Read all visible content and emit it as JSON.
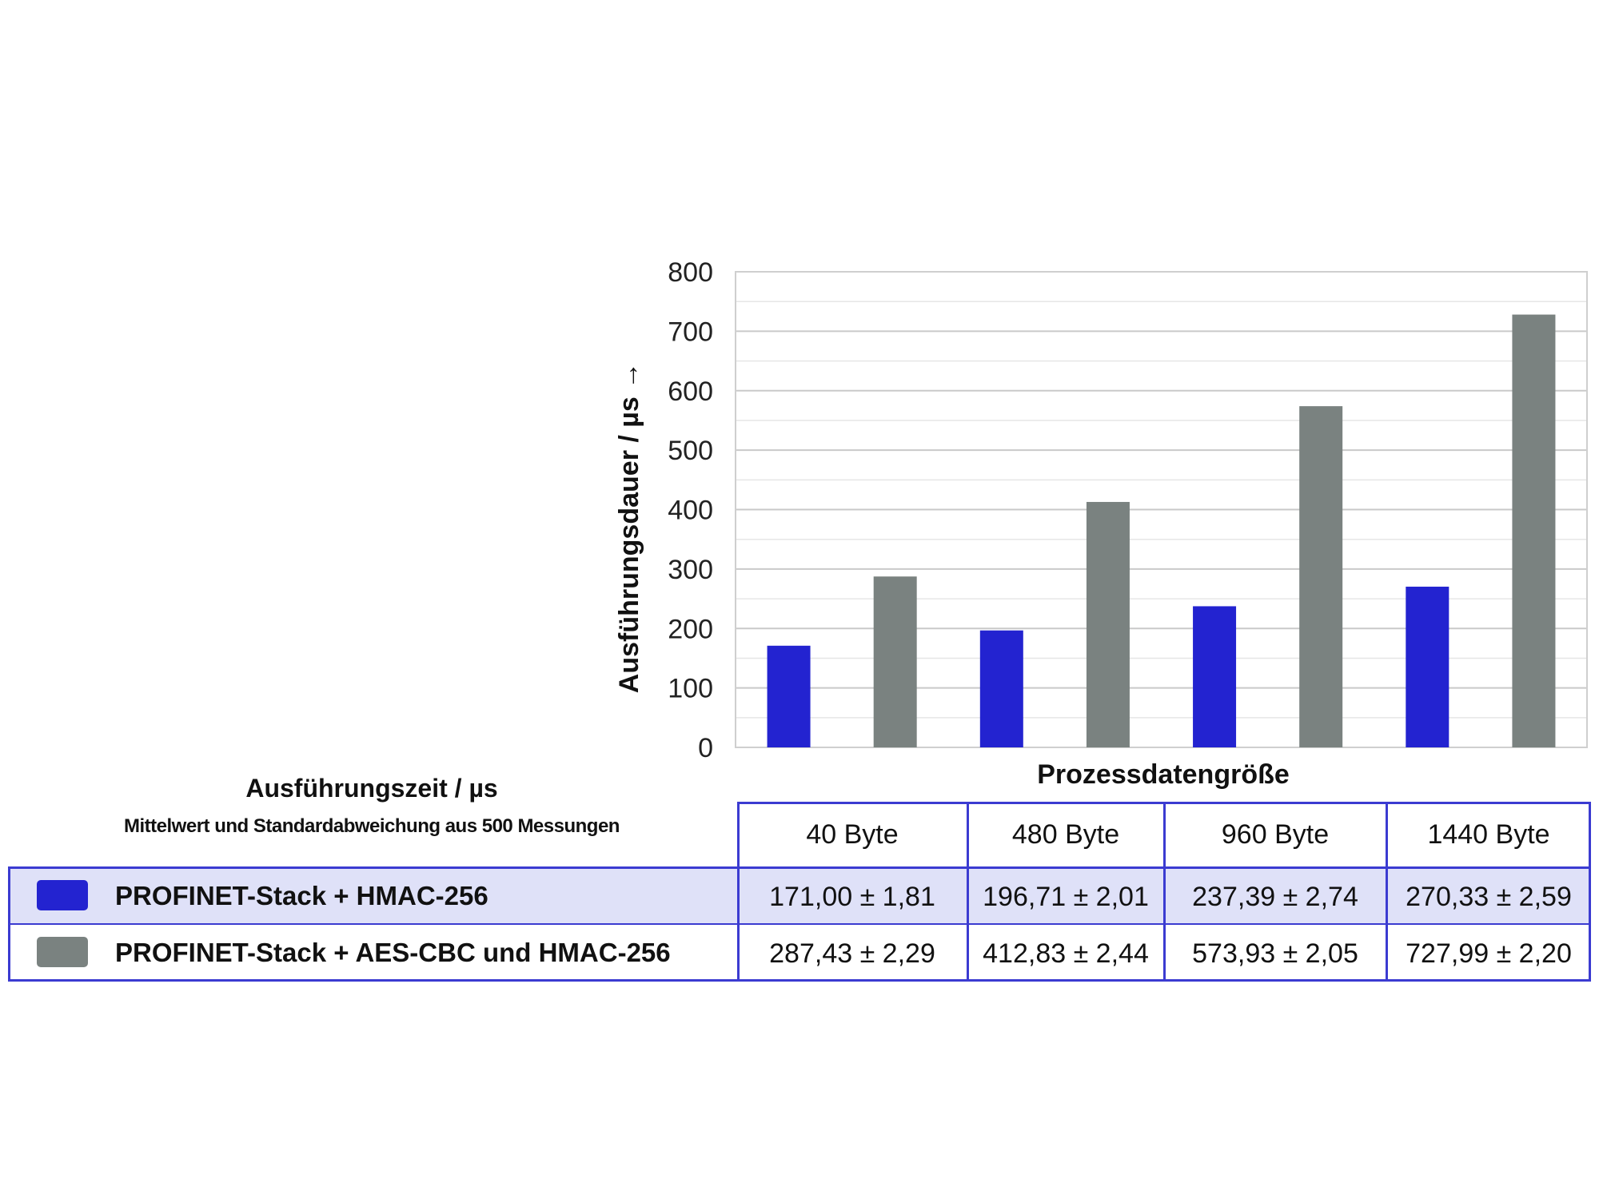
{
  "chart_data": {
    "type": "bar",
    "xlabel": "Prozessdatengröße",
    "ylabel": "Ausführungsdauer  / µs  →",
    "ylim": [
      0,
      800
    ],
    "yticks": [
      0,
      100,
      200,
      300,
      400,
      500,
      600,
      700,
      800
    ],
    "grid": true,
    "categories": [
      "40 Byte",
      "480 Byte",
      "960 Byte",
      "1440 Byte"
    ],
    "series": [
      {
        "name": "PROFINET-Stack + HMAC-256",
        "color": "#2323d0",
        "values": [
          171.0,
          196.71,
          237.39,
          270.33
        ],
        "std": [
          1.81,
          2.01,
          2.74,
          2.59
        ],
        "labels": [
          "171,00 ± 1,81",
          "196,71 ± 2,01",
          "237,39 ± 2,74",
          "270,33 ± 2,59"
        ]
      },
      {
        "name": "PROFINET-Stack + AES-CBC und HMAC-256",
        "color": "#7a8280",
        "values": [
          287.43,
          412.83,
          573.93,
          727.99
        ],
        "std": [
          2.29,
          2.44,
          2.05,
          2.2
        ],
        "labels": [
          "287,43 ± 2,29",
          "412,83 ± 2,44",
          "573,93 ± 2,05",
          "727,99 ± 2,20"
        ]
      }
    ]
  },
  "table": {
    "title": "Ausführungszeit  / µs",
    "subtitle": "Mittelwert und Standardabweichung aus 500 Messungen"
  }
}
